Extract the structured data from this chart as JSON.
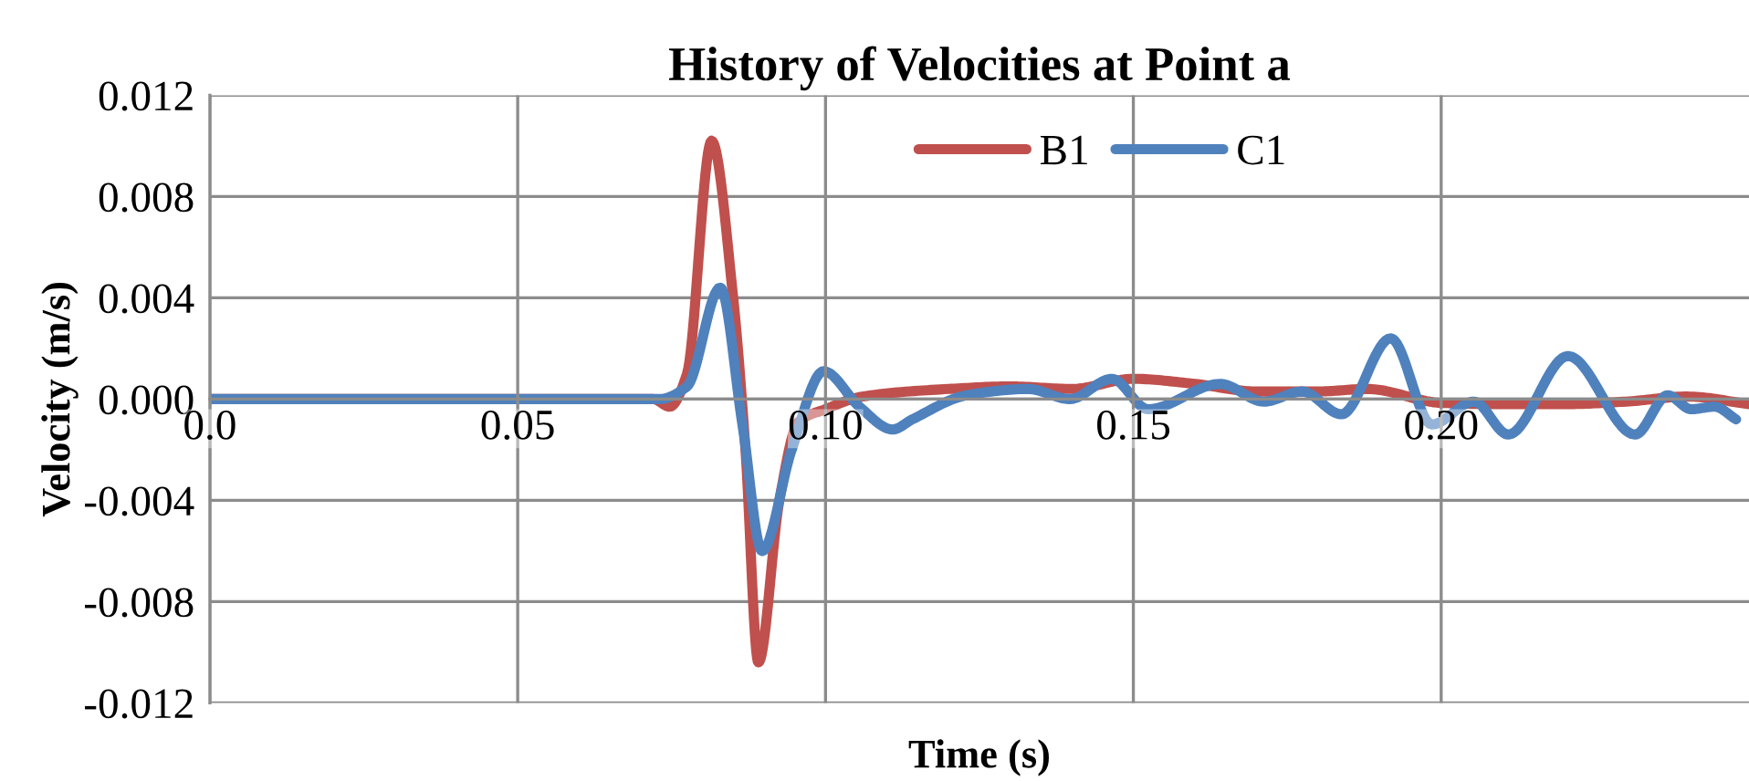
{
  "chart_data": {
    "type": "line",
    "title": "History of Velocities at Point a",
    "xlabel": "Time (s)",
    "ylabel": "Velocity (m/s)",
    "xlim": [
      0,
      0.25
    ],
    "ylim": [
      -0.012,
      0.012
    ],
    "xticks": [
      {
        "value": 0,
        "label": "0.0"
      },
      0.05,
      {
        "value": 0.1,
        "label": "0.10"
      },
      0.15,
      {
        "value": 0.2,
        "label": "0.20"
      }
    ],
    "yticks": [
      {
        "value": -0.012,
        "label": "-0.012"
      },
      {
        "value": -0.008,
        "label": "-0.008"
      },
      {
        "value": -0.004,
        "label": "-0.004"
      },
      {
        "value": 0,
        "label": "0.000"
      },
      {
        "value": 0.004,
        "label": "0.004"
      },
      {
        "value": 0.008,
        "label": "0.008"
      },
      {
        "value": 0.012,
        "label": "0.012"
      }
    ],
    "grid": true,
    "legend": "top",
    "marker": "none",
    "line_style": "solid",
    "series": [
      {
        "name": "B1",
        "color": "#c0504d",
        "x": [
          0,
          0.072,
          0.0747,
          0.0775,
          0.0815,
          0.085,
          0.087,
          0.0891,
          0.0925,
          0.0956,
          0.1,
          0.106,
          0.12,
          0.13,
          0.14,
          0.15,
          0.16,
          0.17,
          0.18,
          0.188,
          0.2,
          0.21,
          0.22,
          0.23,
          0.24,
          0.25
        ],
        "values": [
          0,
          0,
          -0.0003,
          0.001,
          0.0102,
          0.004,
          -0.002,
          -0.0104,
          -0.004,
          -0.0009,
          -0.0004,
          0.0001,
          0.0004,
          0.0005,
          0.0004,
          0.0008,
          0.0006,
          0.0003,
          0.0003,
          0.0004,
          -0.00015,
          -0.0002,
          -0.0002,
          -0.0001,
          0.0001,
          -0.0002
        ]
      },
      {
        "name": "C1",
        "color": "#4f81bd",
        "x": [
          0,
          0.073,
          0.0775,
          0.0829,
          0.0865,
          0.0897,
          0.0945,
          0.0997,
          0.1055,
          0.1109,
          0.1141,
          0.1229,
          0.1329,
          0.1397,
          0.1465,
          0.1524,
          0.1641,
          0.1712,
          0.1774,
          0.1838,
          0.1918,
          0.1985,
          0.2053,
          0.2109,
          0.2206,
          0.2315,
          0.2368,
          0.2406,
          0.2444,
          0.2479
        ],
        "values": [
          0,
          0,
          0.0005,
          0.0044,
          -0.001,
          -0.006,
          -0.002,
          0.0011,
          -0.0003,
          -0.0012,
          -0.0008,
          0.00015,
          0.0004,
          0,
          0.0008,
          -0.0004,
          0.0006,
          -0.0001,
          0.0003,
          -0.0006,
          0.0024,
          -0.001,
          -0.0001,
          -0.0014,
          0.0017,
          -0.0014,
          0.00015,
          -0.0004,
          -0.0003,
          -0.0008
        ]
      }
    ]
  }
}
